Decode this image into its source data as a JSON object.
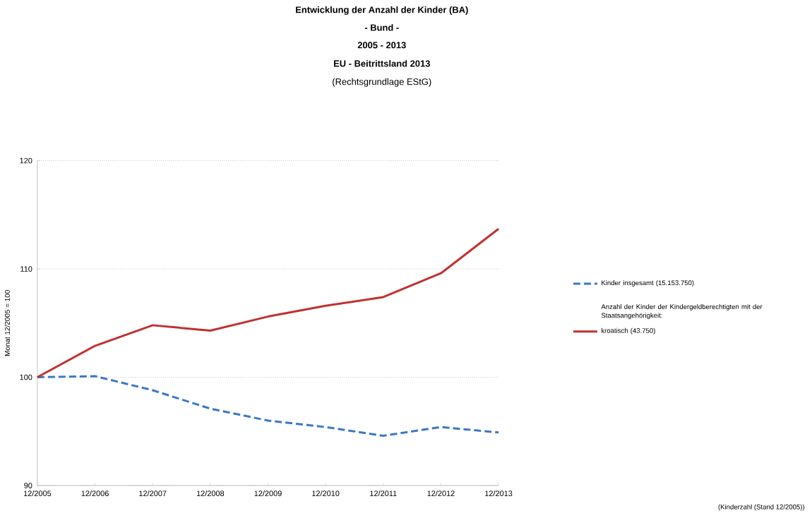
{
  "chart_data": {
    "type": "line",
    "title": "Entwicklung der Anzahl der Kinder (BA)",
    "subtitle": "- Bund -",
    "annotations": [
      "2005 - 2013",
      "EU - Beitrittsland 2013",
      "(Rechtsgrundlage EStG)",
      "Anzahl der Kinder der Kindergeldberechtigten mit der Staatsangehörigkeit:",
      "(Kinderzahl (Stand 12/2005))"
    ],
    "ylabel": "Monat 12/2005 = 100",
    "categories": [
      "12/2005",
      "12/2006",
      "12/2007",
      "12/2008",
      "12/2009",
      "12/2010",
      "12/2011",
      "12/2012",
      "12/2013"
    ],
    "series": [
      {
        "name": "Kinder insgesamt (15.153.750)",
        "color": "#3b78c8",
        "line_style": "dashed",
        "values": [
          100,
          100.1,
          98.8,
          97.1,
          96.0,
          95.4,
          94.6,
          95.4,
          94.9
        ]
      },
      {
        "name": "kroatisch (43.750)",
        "color": "#c0312f",
        "line_style": "solid",
        "values": [
          100,
          102.9,
          104.8,
          104.3,
          105.6,
          106.6,
          107.4,
          109.6,
          113.7
        ]
      }
    ],
    "ylim": [
      90,
      120
    ],
    "yticks": [
      90,
      100,
      110,
      120
    ],
    "grid": "y",
    "legend": "right",
    "marker": "none"
  }
}
